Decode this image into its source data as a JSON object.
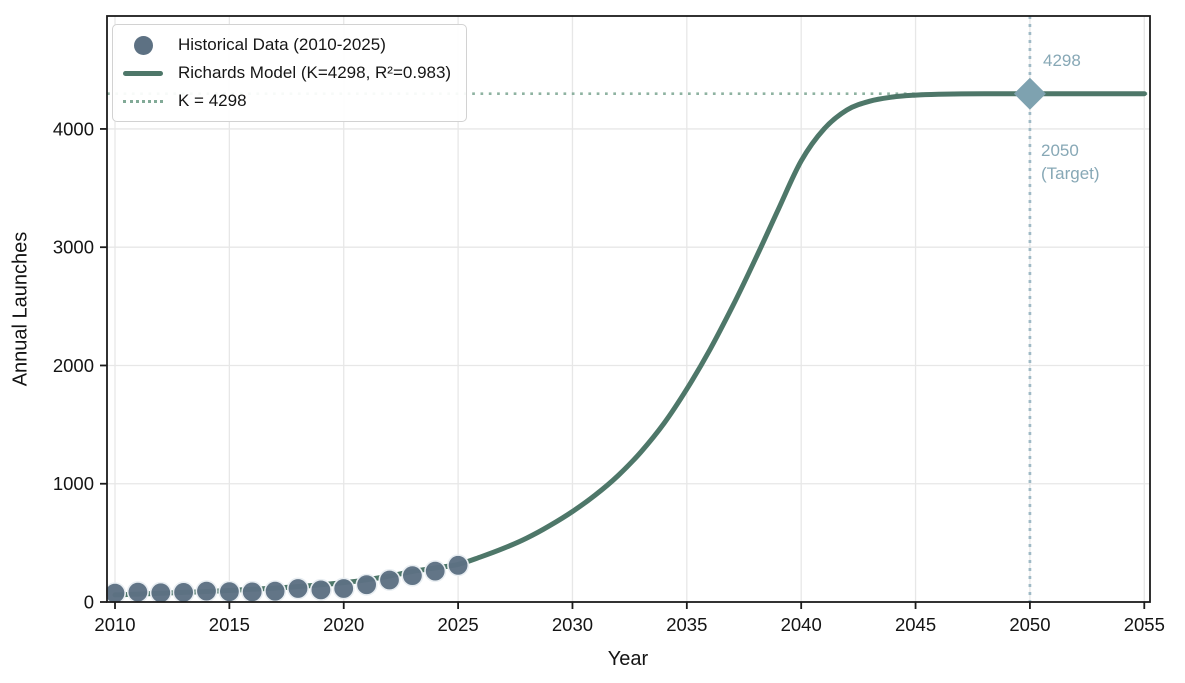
{
  "figure": {
    "xlabel": "Year",
    "ylabel": "Annual Launches"
  },
  "legend": {
    "items": [
      {
        "label": "Historical Data (2010-2025)",
        "swatch": "circle-marker"
      },
      {
        "label": "Richards Model (K=4298, R²=0.983)",
        "swatch": "solid-line"
      },
      {
        "label": "K = 4298",
        "swatch": "dotted-line"
      }
    ]
  },
  "annotations": {
    "capacity_label": "4298",
    "target_year_label": "2050",
    "target_sub_label": "(Target)"
  },
  "colors": {
    "scatter": "#5d7183",
    "scatter_edge": "#e9eef2",
    "model_line": "#4e7769",
    "k_line": "#82aa97",
    "target_line": "#9fbac6",
    "target_marker": "#7ea2b0",
    "annotation_text": "#87a8b6",
    "grid": "#e7e7e7",
    "spine": "#1b1b1b",
    "tick_text": "#141414"
  },
  "chart_data": {
    "type": "line+scatter",
    "title": "",
    "xlabel": "Year",
    "ylabel": "Annual Launches",
    "xlim": [
      2009.65,
      2055.25
    ],
    "ylim": [
      0,
      4955
    ],
    "x_ticks": [
      2010,
      2015,
      2020,
      2025,
      2030,
      2035,
      2040,
      2045,
      2050,
      2055
    ],
    "y_ticks": [
      0,
      1000,
      2000,
      3000,
      4000
    ],
    "grid": true,
    "legend_position": "upper-left",
    "series": [
      {
        "name": "Historical Data (2010-2025)",
        "type": "scatter",
        "x": [
          2010,
          2011,
          2012,
          2013,
          2014,
          2015,
          2016,
          2017,
          2018,
          2019,
          2020,
          2021,
          2022,
          2023,
          2024,
          2025
        ],
        "y": [
          74,
          84,
          78,
          81,
          92,
          87,
          85,
          91,
          114,
          102,
          114,
          146,
          186,
          223,
          261,
          310
        ]
      },
      {
        "name": "Richards Model (K=4298, R²=0.983)",
        "type": "line",
        "x": [
          2010,
          2011,
          2012,
          2013,
          2014,
          2015,
          2016,
          2017,
          2018,
          2019,
          2020,
          2021,
          2022,
          2023,
          2024,
          2025,
          2026,
          2027,
          2028,
          2029,
          2030,
          2031,
          2032,
          2033,
          2034,
          2035,
          2036,
          2037,
          2038,
          2039,
          2040,
          2041,
          2042,
          2043,
          2044,
          2045,
          2046,
          2047,
          2048,
          2049,
          2050,
          2051,
          2052,
          2053,
          2054,
          2055
        ],
        "y": [
          60,
          67,
          74,
          81,
          89,
          97,
          107,
          118,
          131,
          146,
          164,
          188,
          220,
          258,
          288,
          318,
          382,
          455,
          540,
          645,
          765,
          905,
          1070,
          1270,
          1510,
          1800,
          2130,
          2500,
          2900,
          3320,
          3730,
          4000,
          4160,
          4235,
          4270,
          4286,
          4293,
          4296,
          4297,
          4298,
          4298,
          4298,
          4298,
          4298,
          4298,
          4298
        ]
      },
      {
        "name": "K = 4298",
        "type": "hline",
        "y": 4298
      },
      {
        "name": "2050 target marker",
        "type": "point",
        "x": 2050,
        "y": 4298
      }
    ],
    "vline": {
      "x": 2050,
      "label": "2050 (Target)"
    },
    "K": 4298,
    "R_squared": 0.983
  }
}
